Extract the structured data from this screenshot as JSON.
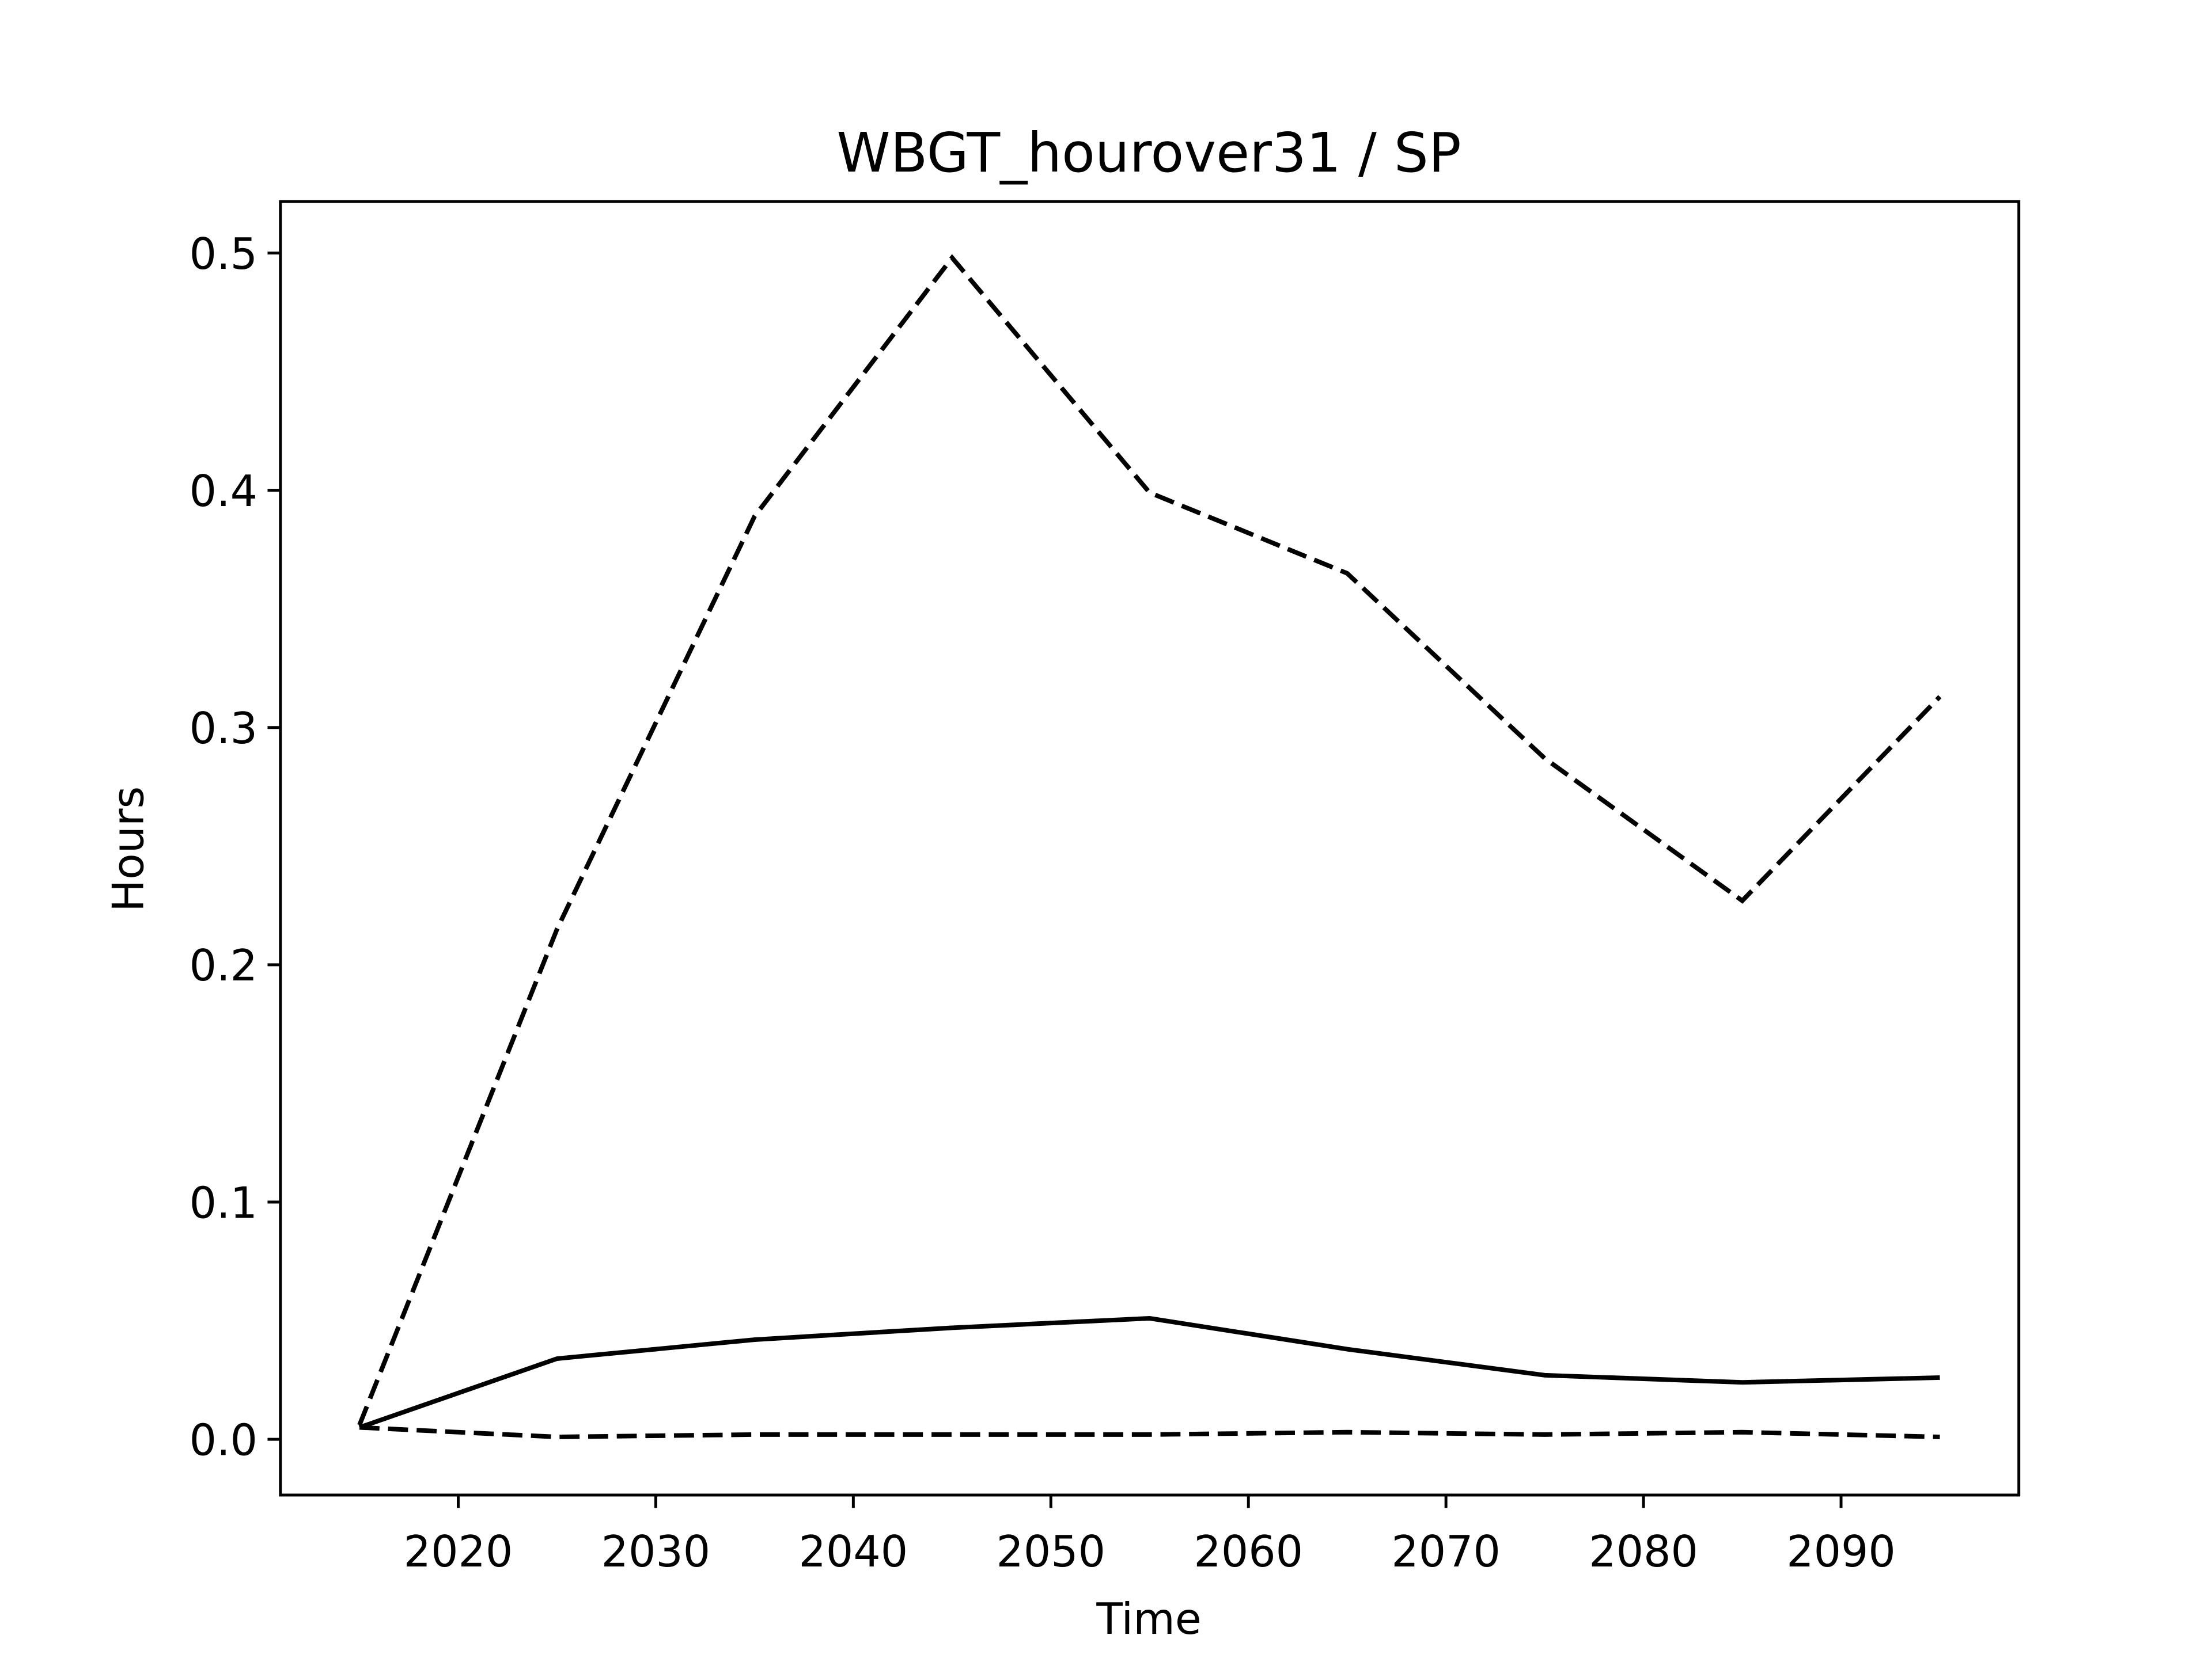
{
  "chart_data": {
    "type": "line",
    "title": "WBGT_hourover31 / SP",
    "x_label": "Time",
    "y_label": "Hours",
    "x": [
      2015,
      2025,
      2035,
      2045,
      2055,
      2065,
      2075,
      2085,
      2095
    ],
    "series": [
      {
        "color": "#000000",
        "linestyle": "dashed",
        "values": [
          0.006,
          0.215,
          0.389,
          0.498,
          0.399,
          0.365,
          0.287,
          0.227,
          0.313
        ]
      },
      {
        "color": "#000000",
        "linestyle": "solid",
        "values": [
          0.005,
          0.034,
          0.042,
          0.047,
          0.051,
          0.038,
          0.027,
          0.024,
          0.026
        ]
      },
      {
        "color": "#000000",
        "linestyle": "dashed",
        "values": [
          0.005,
          0.001,
          0.002,
          0.002,
          0.002,
          0.003,
          0.002,
          0.003,
          0.001
        ]
      }
    ],
    "xlim": [
      2011,
      2099
    ],
    "xticks": [
      2020,
      2030,
      2040,
      2050,
      2060,
      2070,
      2080,
      2090
    ],
    "ylim": [
      -0.0235,
      0.5217
    ],
    "yticks": [
      {
        "value": 0,
        "label": "0.0"
      },
      0.1,
      0.2,
      0.3,
      0.4,
      0.5
    ],
    "grid": false
  }
}
